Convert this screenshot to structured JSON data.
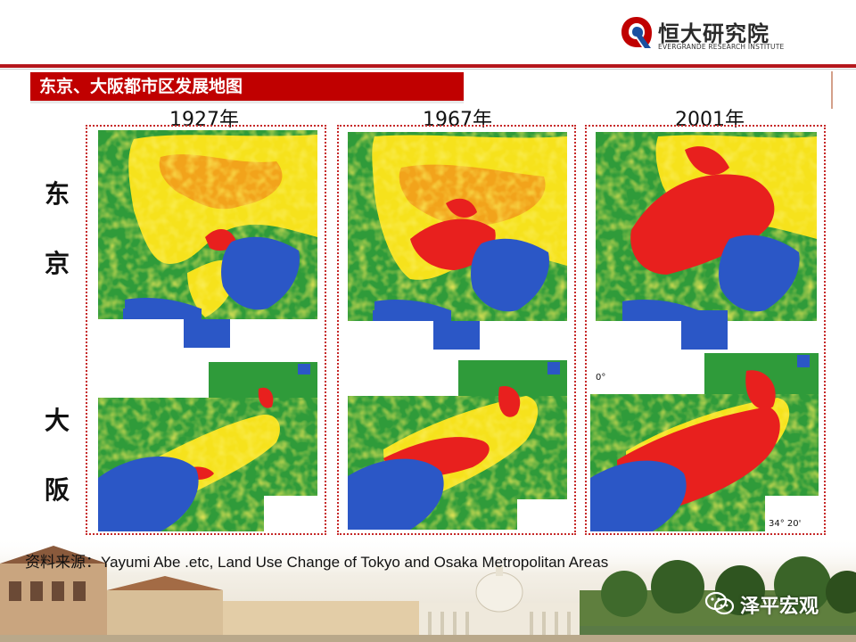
{
  "brand": {
    "name": "恒大研究院",
    "subtitle": "EVERGRANDE RESEARCH INSTITUTE",
    "logo_icon": "evergrande-logo-icon",
    "colors": {
      "red": "#c00000",
      "blue": "#1a4fa0"
    }
  },
  "title": "东京、大阪都市区发展地图",
  "years": [
    "1927年",
    "1967年",
    "2001年"
  ],
  "cities": {
    "tokyo": [
      "东",
      "京"
    ],
    "osaka": [
      "大",
      "阪"
    ]
  },
  "map_legend_colors": {
    "urban": "#e8201e",
    "suburban": "#f6e21c",
    "mixed": "#f2a31b",
    "forest": "#2f9b3a",
    "water": "#2b57c6"
  },
  "source": "资料来源：Yayumi Abe .etc, Land Use Change of Tokyo and Osaka Metropolitan Areas",
  "coord_labels": {
    "osaka_2001_top": "0°",
    "osaka_2001_bottom": "34°  20'"
  },
  "watermark": {
    "icon": "wechat-icon",
    "label": "泽平宏观"
  }
}
